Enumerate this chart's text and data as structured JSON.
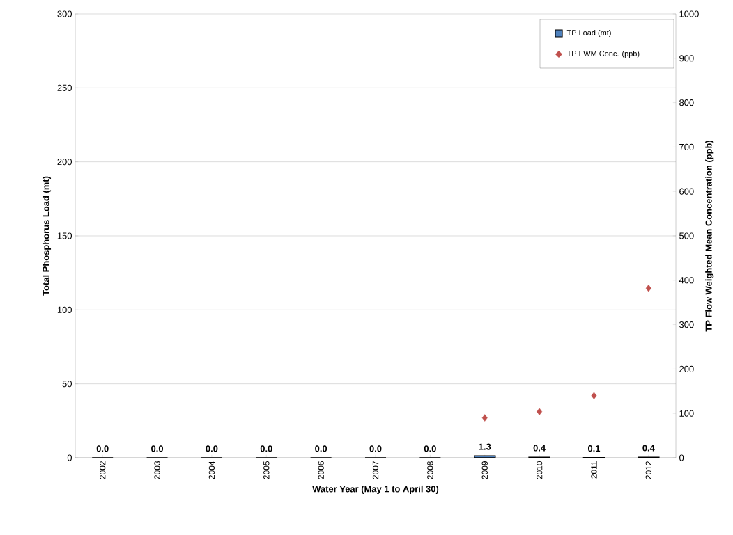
{
  "chart_data": {
    "type": "bar",
    "xlabel": "Water Year (May 1 to April 30)",
    "ylabel": "Total Phosphorus Load (mt)",
    "y2label": "TP Flow Weighted Mean Concentration (ppb)",
    "categories": [
      "2002",
      "2003",
      "2004",
      "2005",
      "2006",
      "2007",
      "2008",
      "2009",
      "2010",
      "2011",
      "2012"
    ],
    "series": [
      {
        "name": "TP Load (mt)",
        "color": "#4f81bd",
        "values": [
          0,
          0,
          0,
          0,
          0,
          0,
          0,
          1.3,
          0.4,
          0.1,
          0.4
        ],
        "value_labels": [
          "0.0",
          "0.0",
          "0.0",
          "0.0",
          "0.0",
          "0.0",
          "0.0",
          "1.3",
          "0.4",
          "0.1",
          "0.4"
        ]
      },
      {
        "name": "TP FWM Conc. (ppb)",
        "type": "scatter",
        "axis": "y2",
        "color": "#c0504d",
        "marker": "diamond",
        "values": [
          null,
          null,
          null,
          null,
          null,
          null,
          null,
          90,
          104,
          140,
          382
        ]
      }
    ],
    "ylim": [
      0,
      300
    ],
    "yticks": [
      0,
      50,
      100,
      150,
      200,
      250,
      300
    ],
    "y2lim": [
      0,
      1000
    ],
    "y2ticks": [
      0,
      100,
      200,
      300,
      400,
      500,
      600,
      700,
      800,
      900,
      1000
    ],
    "grid": "y",
    "legend": "top right"
  }
}
